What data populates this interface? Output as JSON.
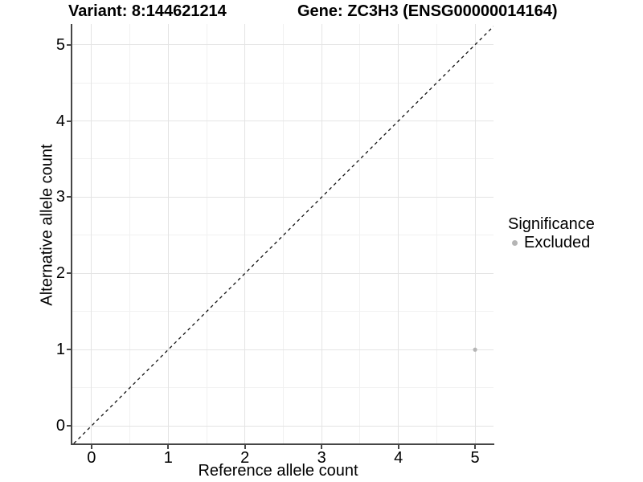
{
  "figure": {
    "background": "#ffffff"
  },
  "chart_data": {
    "type": "scatter",
    "titles": {
      "left": "Variant: 8:144621214",
      "right": "Gene: ZC3H3 (ENSG00000014164)"
    },
    "xlabel": "Reference allele count",
    "ylabel": "Alternative allele count",
    "xlim": [
      -0.26,
      5.24
    ],
    "ylim": [
      -0.23,
      5.27
    ],
    "xticks": [
      0,
      1,
      2,
      3,
      4,
      5
    ],
    "yticks": [
      0,
      1,
      2,
      3,
      4,
      5
    ],
    "minor_grid_step": 0.5,
    "grid": "major and minor horizontal and vertical gridlines, light gray on white",
    "reference_line": {
      "description": "dashed black identity line y = x spanning the panel corner to corner",
      "style": "dashed",
      "color": "#000000"
    },
    "series": [
      {
        "name": "Excluded",
        "color": "#b5b5b5",
        "marker": "circle",
        "points": [
          {
            "x": 5,
            "y": 1
          }
        ]
      }
    ],
    "legend": {
      "title": "Significance",
      "position": "right",
      "items": [
        {
          "label": "Excluded",
          "color": "#b5b5b5",
          "marker": "circle"
        }
      ]
    }
  },
  "colors": {
    "axis_line": "#464646",
    "tick": "#464646",
    "major_grid": "#e4e4e4",
    "minor_grid": "#f1f1f1",
    "text": "#000000",
    "point": "#b5b5b5",
    "reference_line": "#111111"
  }
}
